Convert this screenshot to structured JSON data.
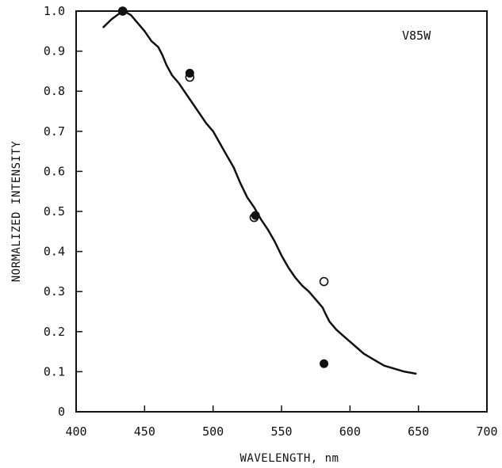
{
  "chart_data": {
    "type": "line",
    "title": "",
    "annotation": "V85W",
    "xlabel": "WAVELENGTH, nm",
    "ylabel": "NORMALIZED INTENSITY",
    "xlim": [
      400,
      700
    ],
    "ylim": [
      0,
      1.0
    ],
    "x_ticks": [
      400,
      450,
      500,
      550,
      600,
      650,
      700
    ],
    "y_ticks": [
      0,
      0.1,
      0.2,
      0.3,
      0.4,
      0.5,
      0.6,
      0.7,
      0.8,
      0.9,
      1.0
    ],
    "x_tick_labels": [
      "400",
      "450",
      "500",
      "550",
      "600",
      "650",
      "700"
    ],
    "y_tick_labels": [
      "0",
      "0.1",
      "0.2",
      "0.3",
      "0.4",
      "0.5",
      "0.6",
      "0.7",
      "0.8",
      "0.9",
      "1.0"
    ],
    "grid": false,
    "series": [
      {
        "style": "curve",
        "x": [
          420,
          426,
          432,
          435,
          440,
          445,
          450,
          455,
          460,
          463,
          466,
          470,
          475,
          480,
          485,
          490,
          495,
          500,
          505,
          510,
          515,
          520,
          525,
          530,
          535,
          540,
          545,
          550,
          555,
          560,
          565,
          570,
          575,
          580,
          582,
          585,
          590,
          595,
          600,
          605,
          610,
          615,
          620,
          625,
          630,
          635,
          640,
          645,
          648
        ],
        "y": [
          0.96,
          0.98,
          0.995,
          1.0,
          0.99,
          0.97,
          0.95,
          0.925,
          0.91,
          0.89,
          0.865,
          0.84,
          0.82,
          0.795,
          0.77,
          0.745,
          0.72,
          0.7,
          0.67,
          0.64,
          0.61,
          0.57,
          0.535,
          0.51,
          0.48,
          0.455,
          0.425,
          0.39,
          0.36,
          0.335,
          0.315,
          0.3,
          0.28,
          0.26,
          0.245,
          0.225,
          0.205,
          0.19,
          0.175,
          0.16,
          0.145,
          0.135,
          0.125,
          0.115,
          0.11,
          0.105,
          0.1,
          0.097,
          0.095
        ]
      },
      {
        "style": "filled-circle",
        "x": [
          434,
          483,
          531,
          581
        ],
        "y": [
          1.0,
          0.845,
          0.49,
          0.12
        ]
      },
      {
        "style": "open-circle",
        "x": [
          434,
          483,
          530,
          581
        ],
        "y": [
          1.0,
          0.835,
          0.485,
          0.325
        ]
      }
    ]
  }
}
